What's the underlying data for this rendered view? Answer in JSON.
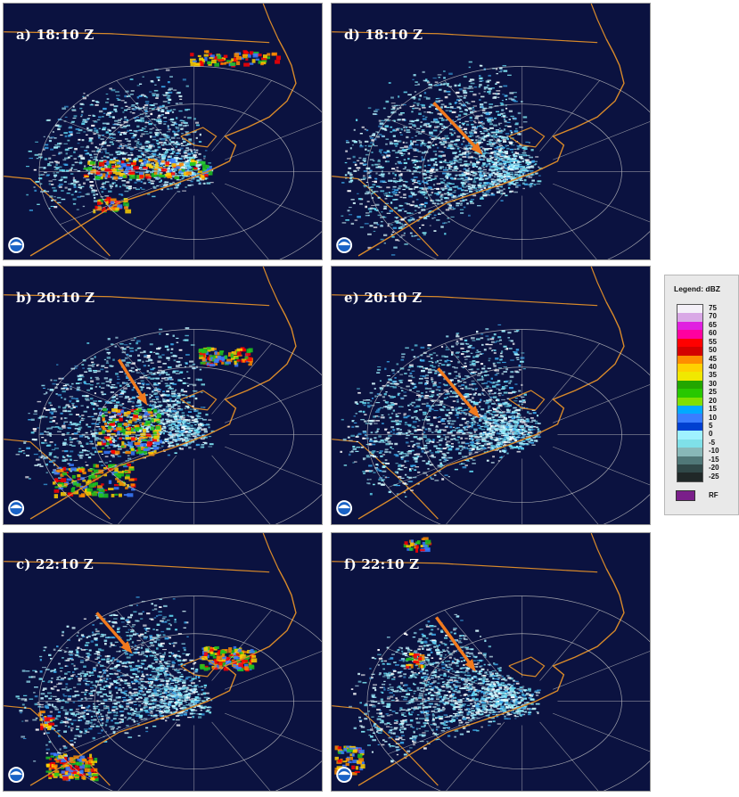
{
  "panels": [
    {
      "label": "a) 18:10 Z"
    },
    {
      "label": "b) 20:10 Z"
    },
    {
      "label": "c) 22:10 Z"
    },
    {
      "label": "d) 18:10 Z"
    },
    {
      "label": "e) 20:10 Z"
    },
    {
      "label": "f) 22:10 Z"
    }
  ],
  "legend": {
    "title": "Legend: dBZ",
    "ticks": [
      "75",
      "70",
      "65",
      "60",
      "55",
      "50",
      "45",
      "40",
      "35",
      "30",
      "25",
      "20",
      "15",
      "10",
      "5",
      "0",
      "-5",
      "-10",
      "-15",
      "-20",
      "-25"
    ],
    "colors": [
      "#f4f0f8",
      "#d9a8e6",
      "#e020e0",
      "#ff00a0",
      "#ff0000",
      "#d40000",
      "#ff8c00",
      "#ffd000",
      "#f0e800",
      "#22a600",
      "#28c800",
      "#80e000",
      "#00aaff",
      "#3a7dff",
      "#0040d0",
      "#9ff2ff",
      "#7fe0e8",
      "#88b8b8",
      "#507878",
      "#304848",
      "#202828"
    ],
    "rf_label": "RF",
    "rf_color": "#7a1f8a"
  },
  "colors": {
    "background": "#0b1240",
    "coast": "#d98a2a",
    "range_rings": "#c8c8c8",
    "arrow": "#f07a1e"
  },
  "icons": {
    "logo": "noaa-logo-icon"
  }
}
